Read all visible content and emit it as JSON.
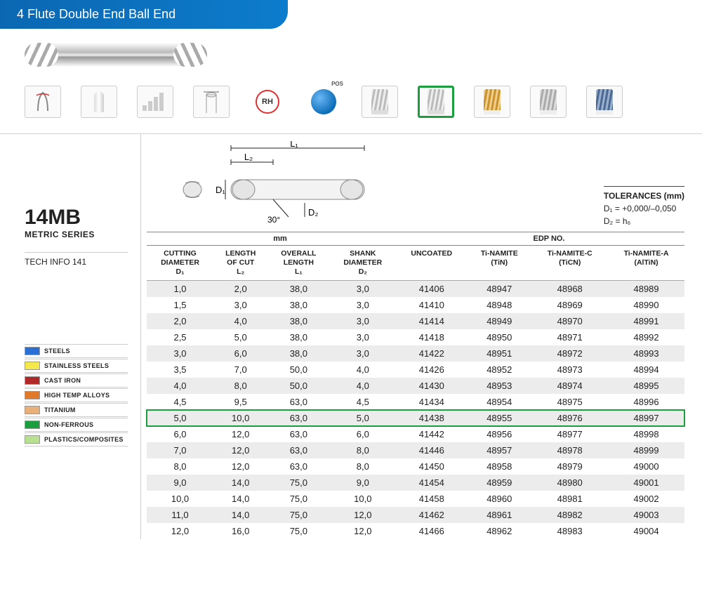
{
  "header": {
    "title": "4 Flute Double End Ball End"
  },
  "series": {
    "code": "14MB",
    "label": "METRIC SERIES",
    "techInfo": "TECH INFO 141"
  },
  "tolerances": {
    "heading": "TOLERANCES (mm)",
    "line1": "D₁ = +0,000/–0,050",
    "line2": "D₂ = h₆"
  },
  "diagram": {
    "angle": "30°",
    "L1": "L₁",
    "L2": "L₂",
    "D1": "D₁",
    "D2": "D₂"
  },
  "iconRow": {
    "rhLabel": "RH",
    "selectedIndex": 6,
    "coatColors": [
      "#d9d9d9",
      "#d9d9d9",
      "#d8a84a",
      "#c8c8c8",
      "#5a7ba8"
    ]
  },
  "sections": {
    "mm": "mm",
    "edp": "EDP NO."
  },
  "legend": [
    {
      "label": "STEELS",
      "color": "#2a6fd6"
    },
    {
      "label": "STAINLESS STEELS",
      "color": "#f5e84a"
    },
    {
      "label": "CAST IRON",
      "color": "#b02828"
    },
    {
      "label": "HIGH TEMP ALLOYS",
      "color": "#e07a2a"
    },
    {
      "label": "TITANIUM",
      "color": "#e8b07a"
    },
    {
      "label": "NON-FERROUS",
      "color": "#1a9e3e"
    },
    {
      "label": "PLASTICS/COMPOSITES",
      "color": "#b8e090"
    }
  ],
  "table": {
    "headers": [
      {
        "l1": "CUTTING",
        "l2": "DIAMETER",
        "l3": "D₁"
      },
      {
        "l1": "LENGTH",
        "l2": "OF CUT",
        "l3": "L₂"
      },
      {
        "l1": "OVERALL",
        "l2": "LENGTH",
        "l3": "L₁"
      },
      {
        "l1": "SHANK",
        "l2": "DIAMETER",
        "l3": "D₂"
      },
      {
        "l1": "UNCOATED",
        "l2": "",
        "l3": ""
      },
      {
        "l1": "Ti-NAMITE",
        "l2": "(TiN)",
        "l3": ""
      },
      {
        "l1": "Ti-NAMITE-C",
        "l2": "(TiCN)",
        "l3": ""
      },
      {
        "l1": "Ti-NAMITE-A",
        "l2": "(AlTiN)",
        "l3": ""
      }
    ],
    "highlightedRowIndex": 8,
    "rows": [
      [
        "1,0",
        "2,0",
        "38,0",
        "3,0",
        "41406",
        "48947",
        "48968",
        "48989"
      ],
      [
        "1,5",
        "3,0",
        "38,0",
        "3,0",
        "41410",
        "48948",
        "48969",
        "48990"
      ],
      [
        "2,0",
        "4,0",
        "38,0",
        "3,0",
        "41414",
        "48949",
        "48970",
        "48991"
      ],
      [
        "2,5",
        "5,0",
        "38,0",
        "3,0",
        "41418",
        "48950",
        "48971",
        "48992"
      ],
      [
        "3,0",
        "6,0",
        "38,0",
        "3,0",
        "41422",
        "48951",
        "48972",
        "48993"
      ],
      [
        "3,5",
        "7,0",
        "50,0",
        "4,0",
        "41426",
        "48952",
        "48973",
        "48994"
      ],
      [
        "4,0",
        "8,0",
        "50,0",
        "4,0",
        "41430",
        "48953",
        "48974",
        "48995"
      ],
      [
        "4,5",
        "9,5",
        "63,0",
        "4,5",
        "41434",
        "48954",
        "48975",
        "48996"
      ],
      [
        "5,0",
        "10,0",
        "63,0",
        "5,0",
        "41438",
        "48955",
        "48976",
        "48997"
      ],
      [
        "6,0",
        "12,0",
        "63,0",
        "6,0",
        "41442",
        "48956",
        "48977",
        "48998"
      ],
      [
        "7,0",
        "12,0",
        "63,0",
        "8,0",
        "41446",
        "48957",
        "48978",
        "48999"
      ],
      [
        "8,0",
        "12,0",
        "63,0",
        "8,0",
        "41450",
        "48958",
        "48979",
        "49000"
      ],
      [
        "9,0",
        "14,0",
        "75,0",
        "9,0",
        "41454",
        "48959",
        "48980",
        "49001"
      ],
      [
        "10,0",
        "14,0",
        "75,0",
        "10,0",
        "41458",
        "48960",
        "48981",
        "49002"
      ],
      [
        "11,0",
        "14,0",
        "75,0",
        "12,0",
        "41462",
        "48961",
        "48982",
        "49003"
      ],
      [
        "12,0",
        "16,0",
        "75,0",
        "12,0",
        "41466",
        "48962",
        "48983",
        "49004"
      ]
    ]
  }
}
